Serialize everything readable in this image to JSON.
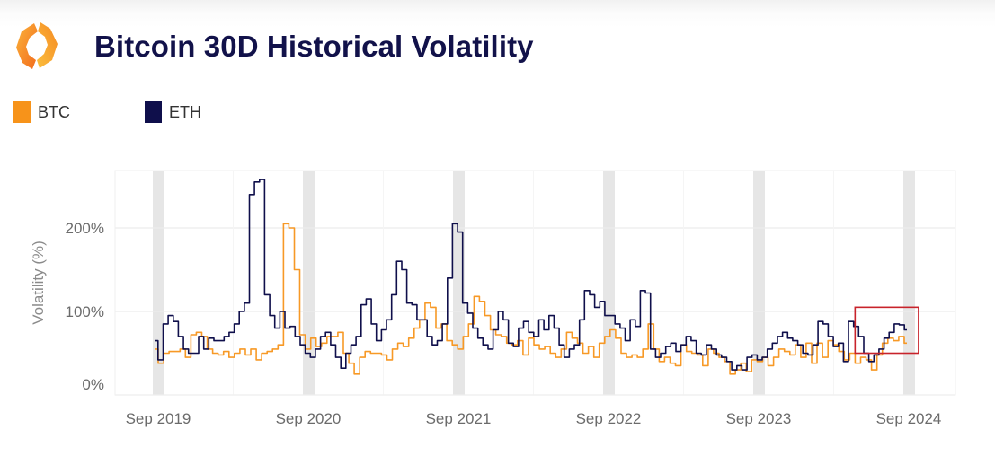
{
  "header": {
    "logo_icon": "hexagon-brackets-logo",
    "title": "Bitcoin 30D Historical Volatility"
  },
  "legend": [
    {
      "label": "BTC",
      "color": "#f7931a"
    },
    {
      "label": "ETH",
      "color": "#0f0f4b"
    }
  ],
  "colors": {
    "btc": "#f7931a",
    "eth": "#0f0f4b",
    "highlight_box": "#c8232b",
    "year_band": "#e6e6e6",
    "gridline": "#ececec"
  },
  "chart_data": {
    "type": "line",
    "title": "Bitcoin 30D Historical Volatility",
    "xlabel": "",
    "ylabel": "Volatility (%)",
    "ylim": [
      0,
      280
    ],
    "yticks": [
      0,
      100,
      200
    ],
    "ytick_labels": [
      "0%",
      "100%",
      "200%"
    ],
    "xlim": [
      "2019-07",
      "2025-01"
    ],
    "xticks": [
      "2019-09",
      "2020-09",
      "2021-09",
      "2022-09",
      "2023-09",
      "2024-09"
    ],
    "xtick_labels": [
      "Sep 2019",
      "Sep 2020",
      "Sep 2021",
      "Sep 2022",
      "Sep 2023",
      "Sep 2024"
    ],
    "shaded_bands": [
      "Sep 2019",
      "Sep 2020",
      "Sep 2021",
      "Sep 2022",
      "Sep 2023",
      "Sep 2024"
    ],
    "grid": true,
    "legend_position": "top-left",
    "highlight_box": {
      "x_range": [
        "2024-05",
        "2024-10"
      ],
      "y_range": [
        50,
        105
      ]
    },
    "x_start": "2019-09-01",
    "x_step": "half-month",
    "series": [
      {
        "name": "BTC",
        "values": [
          55,
          38,
          50,
          52,
          52,
          55,
          45,
          72,
          75,
          70,
          55,
          50,
          48,
          52,
          45,
          50,
          55,
          48,
          55,
          42,
          50,
          52,
          55,
          60,
          205,
          200,
          150,
          72,
          55,
          68,
          58,
          62,
          70,
          70,
          75,
          50,
          38,
          25,
          45,
          52,
          50,
          50,
          48,
          42,
          55,
          62,
          58,
          68,
          80,
          90,
          110,
          105,
          80,
          85,
          65,
          60,
          55,
          70,
          85,
          118,
          112,
          95,
          78,
          72,
          70,
          62,
          60,
          65,
          48,
          68,
          60,
          55,
          58,
          50,
          45,
          55,
          75,
          68,
          62,
          50,
          58,
          45,
          62,
          70,
          78,
          68,
          50,
          45,
          48,
          45,
          55,
          85,
          55,
          40,
          45,
          38,
          35,
          60,
          52,
          50,
          48,
          35,
          55,
          50,
          45,
          40,
          25,
          30,
          38,
          28,
          42,
          40,
          45,
          35,
          45,
          55,
          52,
          48,
          60,
          45,
          62,
          38,
          62,
          45,
          65,
          60,
          52,
          42,
          50,
          38,
          45,
          42,
          30,
          48,
          62,
          68,
          65,
          70,
          62
        ]
      },
      {
        "name": "ETH",
        "values": [
          65,
          42,
          85,
          95,
          88,
          70,
          55,
          50,
          50,
          70,
          55,
          68,
          65,
          65,
          70,
          75,
          85,
          100,
          110,
          240,
          255,
          258,
          120,
          95,
          80,
          100,
          80,
          82,
          70,
          60,
          50,
          45,
          55,
          70,
          75,
          60,
          45,
          32,
          50,
          60,
          70,
          108,
          115,
          85,
          65,
          78,
          90,
          120,
          160,
          150,
          110,
          108,
          90,
          90,
          70,
          60,
          65,
          85,
          140,
          205,
          195,
          110,
          98,
          80,
          68,
          60,
          55,
          78,
          100,
          90,
          62,
          58,
          80,
          88,
          75,
          70,
          90,
          78,
          95,
          80,
          60,
          45,
          55,
          60,
          90,
          125,
          120,
          105,
          112,
          95,
          95,
          85,
          80,
          65,
          90,
          82,
          125,
          122,
          55,
          45,
          50,
          58,
          62,
          52,
          60,
          70,
          65,
          50,
          48,
          60,
          55,
          48,
          45,
          40,
          30,
          35,
          30,
          45,
          48,
          42,
          45,
          55,
          62,
          70,
          75,
          68,
          65,
          60,
          50,
          48,
          60,
          88,
          85,
          70,
          58,
          62,
          40,
          88,
          82,
          70,
          50,
          40,
          48,
          55,
          68,
          75,
          85,
          84,
          78
        ]
      }
    ]
  }
}
